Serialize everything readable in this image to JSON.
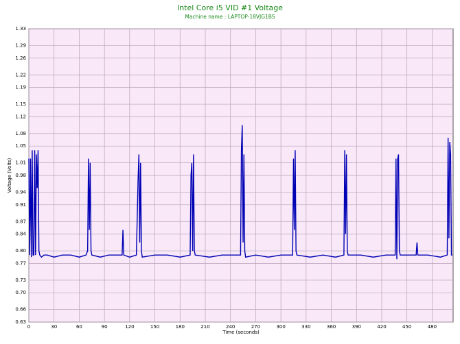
{
  "chart_data": {
    "type": "line",
    "title": "Intel Core i5 VID #1 Voltage",
    "subtitle": "Machine name : LAPTOP-18VJG1BS",
    "y_label": "Voltage (Volts)",
    "x_label": "Time (seconds)",
    "color": "#0000b4",
    "grid": true,
    "x": [
      0,
      1,
      2,
      3,
      4,
      5,
      6,
      7,
      8,
      9,
      10,
      11,
      12,
      13,
      15,
      18,
      22,
      30,
      40,
      50,
      60,
      68,
      70,
      71,
      72,
      73,
      74,
      75,
      85,
      95,
      105,
      111,
      112,
      113,
      120,
      128,
      130,
      131,
      132,
      133,
      134,
      135,
      150,
      165,
      180,
      192,
      193,
      194,
      195,
      196,
      197,
      198,
      215,
      230,
      245,
      252,
      253,
      254,
      255,
      256,
      257,
      258,
      270,
      285,
      300,
      314,
      315,
      316,
      317,
      318,
      319,
      335,
      350,
      365,
      375,
      376,
      377,
      378,
      379,
      380,
      395,
      410,
      425,
      436,
      437,
      438,
      439,
      440,
      441,
      442,
      455,
      461,
      462,
      463,
      475,
      490,
      498,
      499,
      500,
      501,
      502,
      503,
      504
    ],
    "values": [
      1.02,
      0.79,
      1.02,
      0.785,
      1.04,
      0.79,
      0.79,
      1.04,
      0.79,
      1.03,
      0.95,
      1.04,
      0.8,
      0.79,
      0.785,
      0.79,
      0.79,
      0.785,
      0.79,
      0.79,
      0.785,
      0.79,
      0.8,
      1.02,
      0.85,
      1.01,
      0.8,
      0.79,
      0.785,
      0.79,
      0.79,
      0.79,
      0.85,
      0.79,
      0.785,
      0.79,
      0.97,
      1.03,
      0.82,
      1.01,
      0.8,
      0.785,
      0.79,
      0.79,
      0.785,
      0.79,
      0.98,
      1.01,
      0.8,
      1.03,
      0.8,
      0.79,
      0.785,
      0.79,
      0.79,
      0.79,
      1.04,
      1.1,
      0.82,
      1.03,
      0.8,
      0.785,
      0.79,
      0.785,
      0.79,
      0.79,
      1.02,
      0.85,
      1.04,
      0.8,
      0.79,
      0.785,
      0.79,
      0.785,
      0.79,
      1.04,
      0.84,
      1.03,
      0.8,
      0.79,
      0.79,
      0.785,
      0.79,
      0.79,
      1.02,
      0.78,
      1.02,
      1.03,
      0.8,
      0.79,
      0.79,
      0.79,
      0.82,
      0.79,
      0.79,
      0.785,
      0.79,
      1.07,
      0.83,
      1.06,
      1.03,
      0.79,
      0.79
    ],
    "xlim": [
      0,
      505
    ],
    "xticks": [
      0,
      30,
      60,
      90,
      120,
      150,
      180,
      210,
      240,
      270,
      300,
      330,
      360,
      390,
      420,
      450,
      480
    ],
    "ylim": [
      0.63,
      1.33
    ],
    "yticks": [
      0.63,
      0.66,
      {
        "value": 0.7,
        "label": "0.70"
      },
      0.73,
      0.77,
      {
        "value": 0.8,
        "label": "0.80"
      },
      0.84,
      0.87,
      0.91,
      0.94,
      0.98,
      1.01,
      1.05,
      1.08,
      1.12,
      1.15,
      1.19,
      1.22,
      1.26,
      1.29,
      1.33
    ]
  }
}
